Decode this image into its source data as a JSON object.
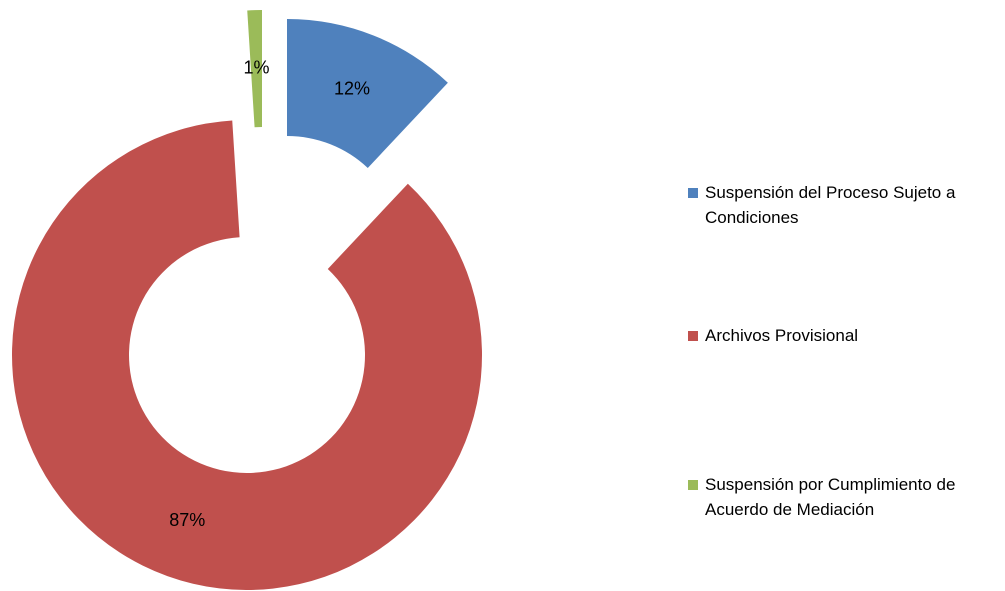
{
  "chart_data": {
    "type": "doughnut",
    "categories": [
      "Suspensión del Proceso Sujeto a Condiciones",
      "Archivos Provisional",
      "Suspensión por Cumplimiento de Acuerdo de Mediación"
    ],
    "values": [
      12,
      87,
      1
    ],
    "value_labels": [
      "12%",
      "87%",
      "1%"
    ],
    "colors": [
      "#4f81bd",
      "#c0504d",
      "#9bbb59"
    ],
    "legend": "right"
  }
}
